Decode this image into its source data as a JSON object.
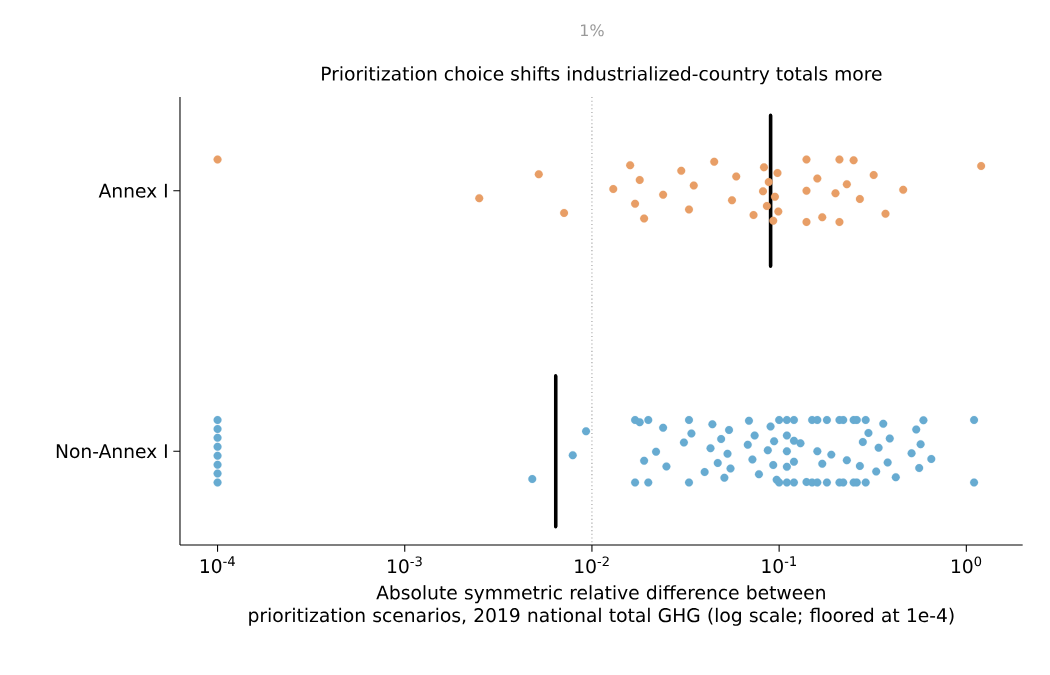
{
  "chart_data": {
    "type": "scatter",
    "orientation": "horizontal",
    "log": "x",
    "title": "Prioritization choice shifts industrialized-country totals more",
    "xlabel": "Absolute symmetric relative difference between\nprioritization scenarios, 2019 national total GHG (log scale; floored at 1e-4)",
    "categories": [
      "Annex I",
      "Non-Annex I"
    ],
    "xlim": [
      6.3e-05,
      2
    ],
    "xticks": [
      {
        "value": 0.0001,
        "label": "10$^{-4}$"
      },
      {
        "value": 0.001,
        "label": "10$^{-3}$"
      },
      {
        "value": 0.01,
        "label": "10$^{-2}$"
      },
      {
        "value": 0.1,
        "label": "10$^{-1}$"
      },
      {
        "value": 1,
        "label": "10$^{0}$"
      }
    ],
    "grid": false,
    "marker": "circle",
    "ref_lines": [
      {
        "axis": "x",
        "value": 0.01,
        "label": "1%",
        "color": "#999999",
        "line_style": "dotted"
      }
    ],
    "series": [
      {
        "type": "scatter",
        "color": "#e89e66",
        "x": [
          "Annex I",
          "Annex I",
          "Annex I",
          "Annex I",
          "Annex I",
          "Annex I",
          "Annex I",
          "Annex I",
          "Annex I",
          "Annex I",
          "Annex I",
          "Annex I",
          "Annex I",
          "Annex I",
          "Annex I",
          "Annex I",
          "Annex I",
          "Annex I",
          "Annex I",
          "Annex I",
          "Annex I",
          "Annex I",
          "Annex I",
          "Annex I",
          "Annex I",
          "Annex I",
          "Annex I",
          "Annex I",
          "Annex I",
          "Annex I",
          "Annex I",
          "Annex I",
          "Annex I",
          "Annex I",
          "Annex I",
          "Annex I",
          "Annex I",
          "Annex I",
          "Annex I",
          "Annex I"
        ],
        "values": [
          0.0001,
          0.0025,
          0.0052,
          0.0071,
          0.013,
          0.016,
          0.017,
          0.018,
          0.019,
          0.024,
          0.03,
          0.033,
          0.035,
          0.045,
          0.056,
          0.059,
          0.073,
          0.082,
          0.083,
          0.086,
          0.088,
          0.093,
          0.095,
          0.098,
          0.099,
          0.14,
          0.14,
          0.14,
          0.16,
          0.17,
          0.2,
          0.21,
          0.21,
          0.23,
          0.25,
          0.27,
          0.32,
          0.37,
          0.46,
          1.2
        ]
      },
      {
        "type": "scatter",
        "color": "#67abd1",
        "x": [
          "Non-Annex I",
          "Non-Annex I",
          "Non-Annex I",
          "Non-Annex I",
          "Non-Annex I",
          "Non-Annex I",
          "Non-Annex I",
          "Non-Annex I",
          "Non-Annex I",
          "Non-Annex I",
          "Non-Annex I",
          "Non-Annex I",
          "Non-Annex I",
          "Non-Annex I",
          "Non-Annex I",
          "Non-Annex I",
          "Non-Annex I",
          "Non-Annex I",
          "Non-Annex I",
          "Non-Annex I",
          "Non-Annex I",
          "Non-Annex I",
          "Non-Annex I",
          "Non-Annex I",
          "Non-Annex I",
          "Non-Annex I",
          "Non-Annex I",
          "Non-Annex I",
          "Non-Annex I",
          "Non-Annex I",
          "Non-Annex I",
          "Non-Annex I",
          "Non-Annex I",
          "Non-Annex I",
          "Non-Annex I",
          "Non-Annex I",
          "Non-Annex I",
          "Non-Annex I",
          "Non-Annex I",
          "Non-Annex I",
          "Non-Annex I",
          "Non-Annex I",
          "Non-Annex I",
          "Non-Annex I",
          "Non-Annex I",
          "Non-Annex I",
          "Non-Annex I",
          "Non-Annex I",
          "Non-Annex I",
          "Non-Annex I",
          "Non-Annex I",
          "Non-Annex I",
          "Non-Annex I",
          "Non-Annex I",
          "Non-Annex I",
          "Non-Annex I",
          "Non-Annex I",
          "Non-Annex I",
          "Non-Annex I",
          "Non-Annex I",
          "Non-Annex I",
          "Non-Annex I",
          "Non-Annex I",
          "Non-Annex I",
          "Non-Annex I",
          "Non-Annex I",
          "Non-Annex I",
          "Non-Annex I",
          "Non-Annex I",
          "Non-Annex I",
          "Non-Annex I",
          "Non-Annex I",
          "Non-Annex I",
          "Non-Annex I",
          "Non-Annex I",
          "Non-Annex I",
          "Non-Annex I",
          "Non-Annex I",
          "Non-Annex I",
          "Non-Annex I",
          "Non-Annex I",
          "Non-Annex I",
          "Non-Annex I",
          "Non-Annex I",
          "Non-Annex I",
          "Non-Annex I",
          "Non-Annex I",
          "Non-Annex I",
          "Non-Annex I",
          "Non-Annex I",
          "Non-Annex I",
          "Non-Annex I",
          "Non-Annex I"
        ],
        "values": [
          0.0001,
          0.0001,
          0.0001,
          0.0001,
          0.0001,
          0.0001,
          0.0001,
          0.0001,
          0.0048,
          0.0079,
          0.0093,
          0.017,
          0.017,
          0.018,
          0.019,
          0.02,
          0.02,
          0.022,
          0.024,
          0.025,
          0.031,
          0.033,
          0.033,
          0.034,
          0.04,
          0.043,
          0.044,
          0.047,
          0.049,
          0.051,
          0.053,
          0.054,
          0.055,
          0.068,
          0.069,
          0.072,
          0.074,
          0.078,
          0.087,
          0.09,
          0.093,
          0.094,
          0.097,
          0.1,
          0.1,
          0.11,
          0.11,
          0.11,
          0.11,
          0.11,
          0.12,
          0.12,
          0.12,
          0.12,
          0.13,
          0.14,
          0.15,
          0.15,
          0.16,
          0.16,
          0.16,
          0.17,
          0.18,
          0.18,
          0.19,
          0.21,
          0.21,
          0.22,
          0.22,
          0.23,
          0.25,
          0.25,
          0.26,
          0.26,
          0.27,
          0.28,
          0.29,
          0.29,
          0.3,
          0.33,
          0.34,
          0.36,
          0.38,
          0.39,
          0.42,
          0.51,
          0.54,
          0.56,
          0.57,
          0.59,
          0.65,
          1.1,
          1.1
        ]
      },
      {
        "type": "box",
        "color": "#000000",
        "boxes": [
          {
            "low": 0.09,
            "q1": 0.09,
            "median": 0.09,
            "q3": 0.09,
            "high": 0.09
          },
          {
            "low": 0.0064,
            "q1": 0.0064,
            "median": 0.0064,
            "q3": 0.0064,
            "high": 0.0064
          }
        ]
      }
    ]
  }
}
